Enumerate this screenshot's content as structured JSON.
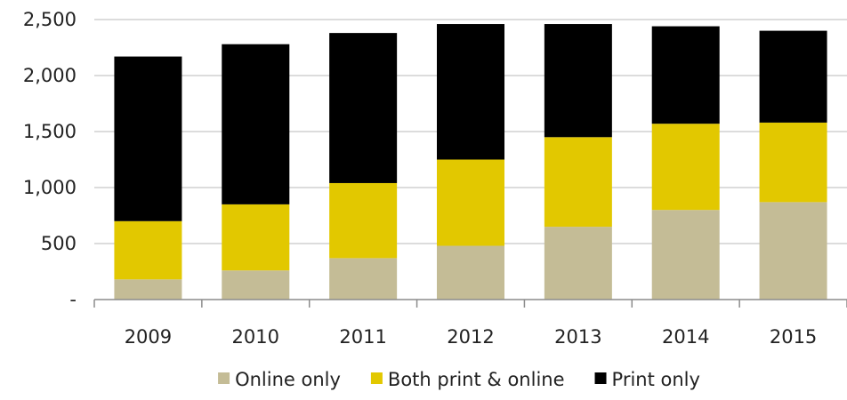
{
  "chart_data": {
    "type": "bar",
    "stacked": true,
    "categories": [
      "2009",
      "2010",
      "2011",
      "2012",
      "2013",
      "2014",
      "2015"
    ],
    "series": [
      {
        "name": "Online only",
        "color": "#C4BC96",
        "values": [
          180,
          260,
          370,
          480,
          650,
          800,
          870
        ]
      },
      {
        "name": "Both print & online",
        "color": "#E2C800",
        "values": [
          520,
          590,
          670,
          770,
          800,
          770,
          710
        ]
      },
      {
        "name": "Print only",
        "color": "#000000",
        "values": [
          1470,
          1430,
          1340,
          1210,
          1010,
          870,
          820
        ]
      }
    ],
    "y_ticks": [
      {
        "value": 0,
        "label": "-"
      },
      {
        "value": 500,
        "label": "500"
      },
      {
        "value": 1000,
        "label": "1,000"
      },
      {
        "value": 1500,
        "label": "1,500"
      },
      {
        "value": 2000,
        "label": "2,000"
      },
      {
        "value": 2500,
        "label": "2,500"
      }
    ],
    "ylim": [
      0,
      2500
    ],
    "grid": true,
    "legend_position": "bottom",
    "title": "",
    "xlabel": "",
    "ylabel": ""
  }
}
